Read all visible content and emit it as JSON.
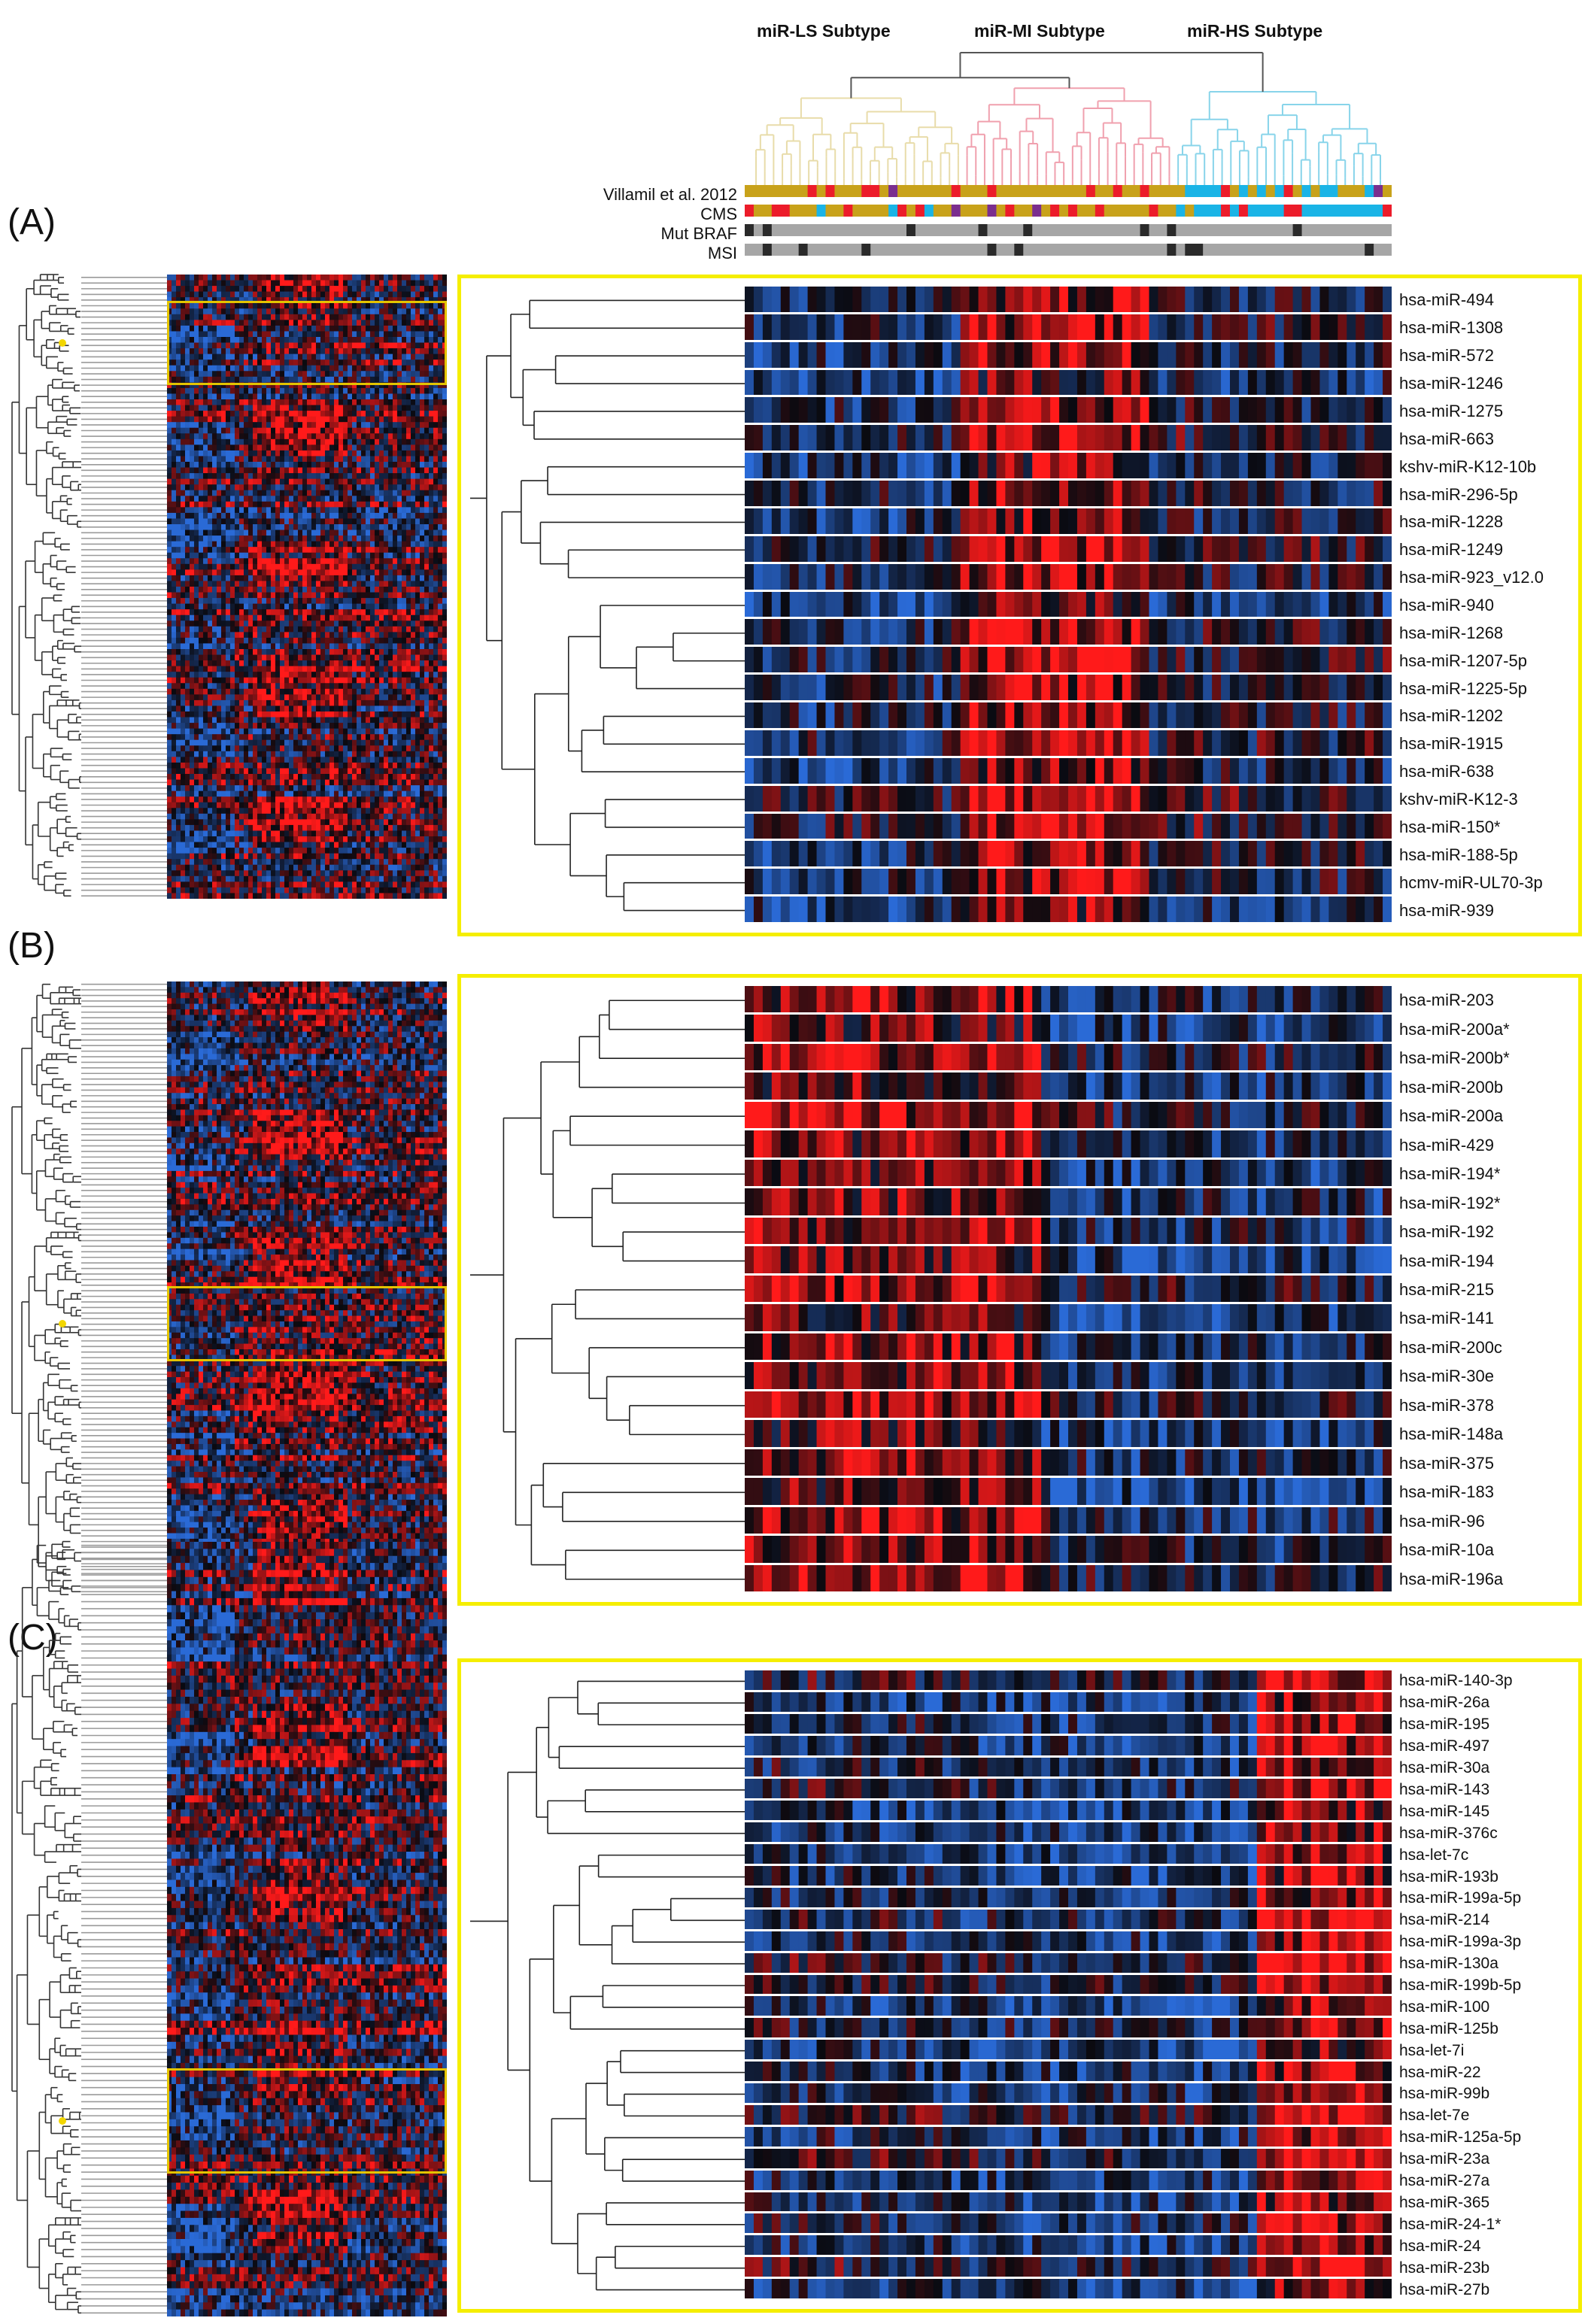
{
  "subtypes": [
    {
      "label": "miR-LS Subtype",
      "color": "#e8dcaa"
    },
    {
      "label": "miR-MI Subtype",
      "color": "#f0a0ae"
    },
    {
      "label": "miR-HS Subtype",
      "color": "#88d4ea"
    }
  ],
  "annotation_tracks": [
    {
      "label": "Villamil et al. 2012"
    },
    {
      "label": "CMS"
    },
    {
      "label": "Mut BRAF"
    },
    {
      "label": "MSI"
    }
  ],
  "annotation_colors": {
    "gold": "#c8a21a",
    "red": "#ec1c2a",
    "cyan": "#1ab4e6",
    "purple": "#7a2e8e",
    "gray": "#a6a6a6",
    "dark": "#2a2a2a"
  },
  "heat_colors": {
    "high": "#ff1a1a",
    "low": "#2a6ad6",
    "mid": "#0a0a10"
  },
  "highlight_color": "#f5ee00",
  "panels": [
    {
      "letter": "(A)",
      "pattern": "mid-high",
      "mirnas": [
        "hsa-miR-494",
        "hsa-miR-1308",
        "hsa-miR-572",
        "hsa-miR-1246",
        "hsa-miR-1275",
        "hsa-miR-663",
        "kshv-miR-K12-10b",
        "hsa-miR-296-5p",
        "hsa-miR-1228",
        "hsa-miR-1249",
        "hsa-miR-923_v12.0",
        "hsa-miR-940",
        "hsa-miR-1268",
        "hsa-miR-1207-5p",
        "hsa-miR-1225-5p",
        "hsa-miR-1202",
        "hsa-miR-1915",
        "hsa-miR-638",
        "kshv-miR-K12-3",
        "hsa-miR-150*",
        "hsa-miR-188-5p",
        "hcmv-miR-UL70-3p",
        "hsa-miR-939"
      ]
    },
    {
      "letter": "(B)",
      "pattern": "left-high",
      "mirnas": [
        "hsa-miR-203",
        "hsa-miR-200a*",
        "hsa-miR-200b*",
        "hsa-miR-200b",
        "hsa-miR-200a",
        "hsa-miR-429",
        "hsa-miR-194*",
        "hsa-miR-192*",
        "hsa-miR-192",
        "hsa-miR-194",
        "hsa-miR-215",
        "hsa-miR-141",
        "hsa-miR-200c",
        "hsa-miR-30e",
        "hsa-miR-378",
        "hsa-miR-148a",
        "hsa-miR-375",
        "hsa-miR-183",
        "hsa-miR-96",
        "hsa-miR-10a",
        "hsa-miR-196a"
      ]
    },
    {
      "letter": "(C)",
      "pattern": "right-high",
      "mirnas": [
        "hsa-miR-140-3p",
        "hsa-miR-26a",
        "hsa-miR-195",
        "hsa-miR-497",
        "hsa-miR-30a",
        "hsa-miR-143",
        "hsa-miR-145",
        "hsa-miR-376c",
        "hsa-let-7c",
        "hsa-miR-193b",
        "hsa-miR-199a-5p",
        "hsa-miR-214",
        "hsa-miR-199a-3p",
        "hsa-miR-130a",
        "hsa-miR-199b-5p",
        "hsa-miR-100",
        "hsa-miR-125b",
        "hsa-let-7i",
        "hsa-miR-22",
        "hsa-miR-99b",
        "hsa-let-7e",
        "hsa-miR-125a-5p",
        "hsa-miR-23a",
        "hsa-miR-27a",
        "hsa-miR-365",
        "hsa-miR-24-1*",
        "hsa-miR-24",
        "hsa-miR-23b",
        "hsa-miR-27b"
      ]
    }
  ]
}
